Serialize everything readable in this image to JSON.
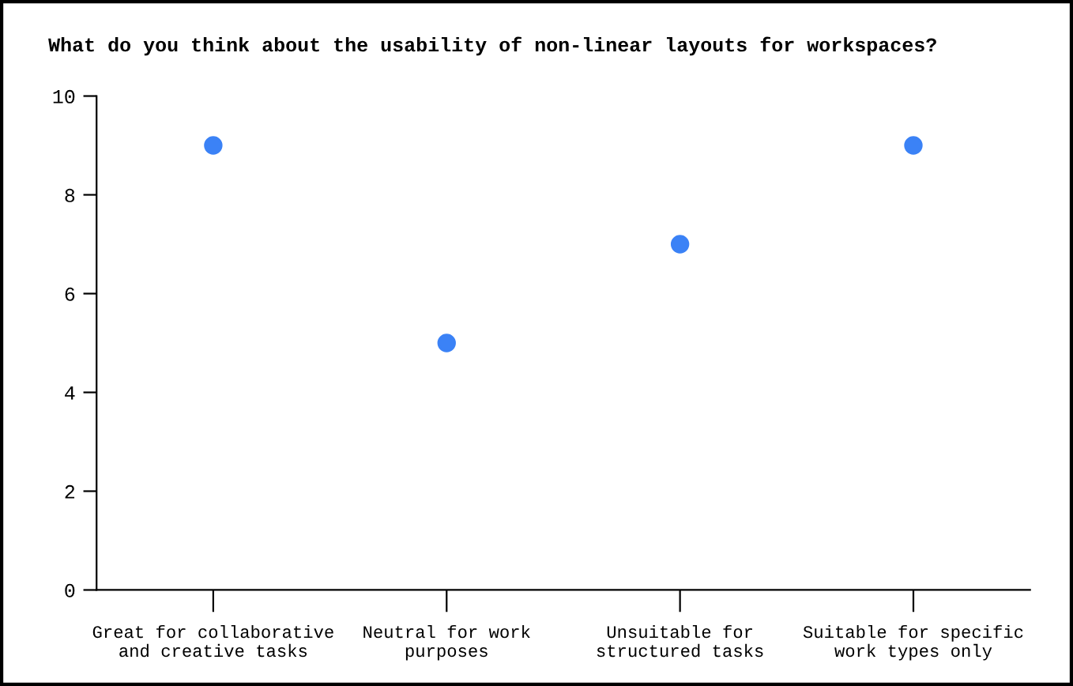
{
  "chart_data": {
    "type": "scatter",
    "title": "What do you think about the usability of non-linear layouts for workspaces?",
    "categories": [
      "Great for collaborative\nand creative tasks",
      "Neutral for work\npurposes",
      "Unsuitable for\nstructured tasks",
      "Suitable for specific\nwork types only"
    ],
    "values": [
      9,
      5,
      7,
      9
    ],
    "color": "#3b82f6",
    "marker": "circle",
    "ylim": [
      0,
      10
    ],
    "yticks": [
      0,
      2,
      4,
      6,
      8,
      10
    ],
    "grid": false,
    "legend": false
  }
}
